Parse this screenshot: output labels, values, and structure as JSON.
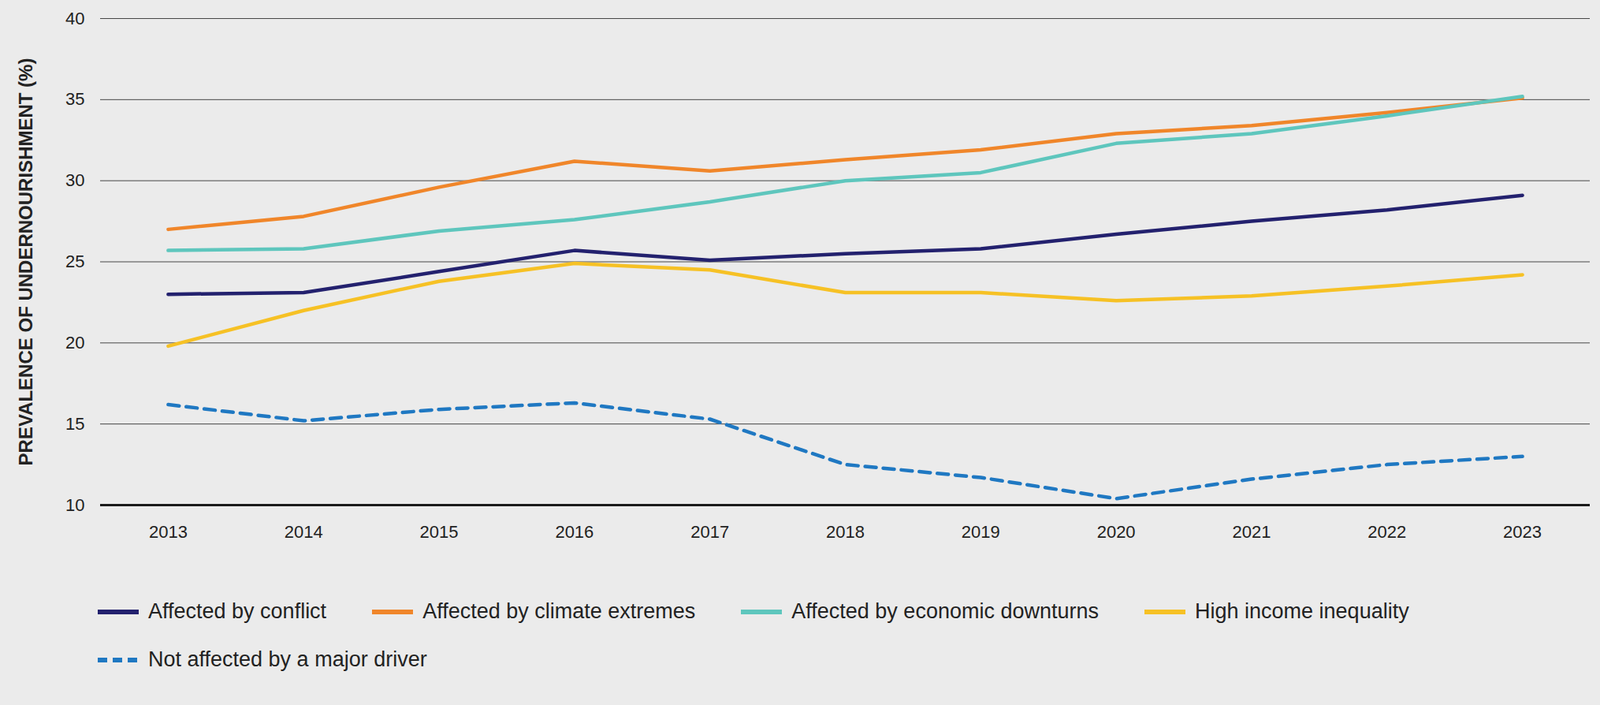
{
  "chart_data": {
    "type": "line",
    "y_label": "PREVALENCE OF UNDERNOURISHMENT (%)",
    "x": [
      2013,
      2014,
      2015,
      2016,
      2017,
      2018,
      2019,
      2020,
      2021,
      2022,
      2023
    ],
    "series": [
      {
        "name": "Affected by conflict",
        "color": "#23216e",
        "line_style": "solid",
        "values": [
          23.0,
          23.1,
          24.4,
          25.7,
          25.1,
          25.5,
          25.8,
          26.7,
          27.5,
          28.2,
          29.1
        ]
      },
      {
        "name": "Affected by climate extremes",
        "color": "#f0862a",
        "line_style": "solid",
        "values": [
          27.0,
          27.8,
          29.6,
          31.2,
          30.6,
          31.3,
          31.9,
          32.9,
          33.4,
          34.2,
          35.1
        ]
      },
      {
        "name": "Affected by economic downturns",
        "color": "#5ec6bd",
        "line_style": "solid",
        "values": [
          25.7,
          25.8,
          26.9,
          27.6,
          28.7,
          30.0,
          30.5,
          32.3,
          32.9,
          34.0,
          35.2
        ]
      },
      {
        "name": "High income inequality",
        "color": "#f6c125",
        "line_style": "solid",
        "values": [
          19.8,
          22.0,
          23.8,
          24.9,
          24.5,
          23.1,
          23.1,
          22.6,
          22.9,
          23.5,
          24.2
        ]
      },
      {
        "name": "Not affected by a major driver",
        "color": "#1f78c2",
        "line_style": "dashed",
        "values": [
          16.2,
          15.2,
          15.9,
          16.3,
          15.3,
          12.5,
          11.7,
          10.4,
          11.6,
          12.5,
          13.0
        ]
      }
    ],
    "xlim": [
      2012.5,
      2023.5
    ],
    "ylim": [
      10,
      40
    ],
    "xticks": [
      2013,
      2014,
      2015,
      2016,
      2017,
      2018,
      2019,
      2020,
      2021,
      2022,
      2023
    ],
    "yticks": [
      10,
      15,
      20,
      25,
      30,
      35,
      40
    ],
    "grid": true,
    "legend": "bottom"
  }
}
